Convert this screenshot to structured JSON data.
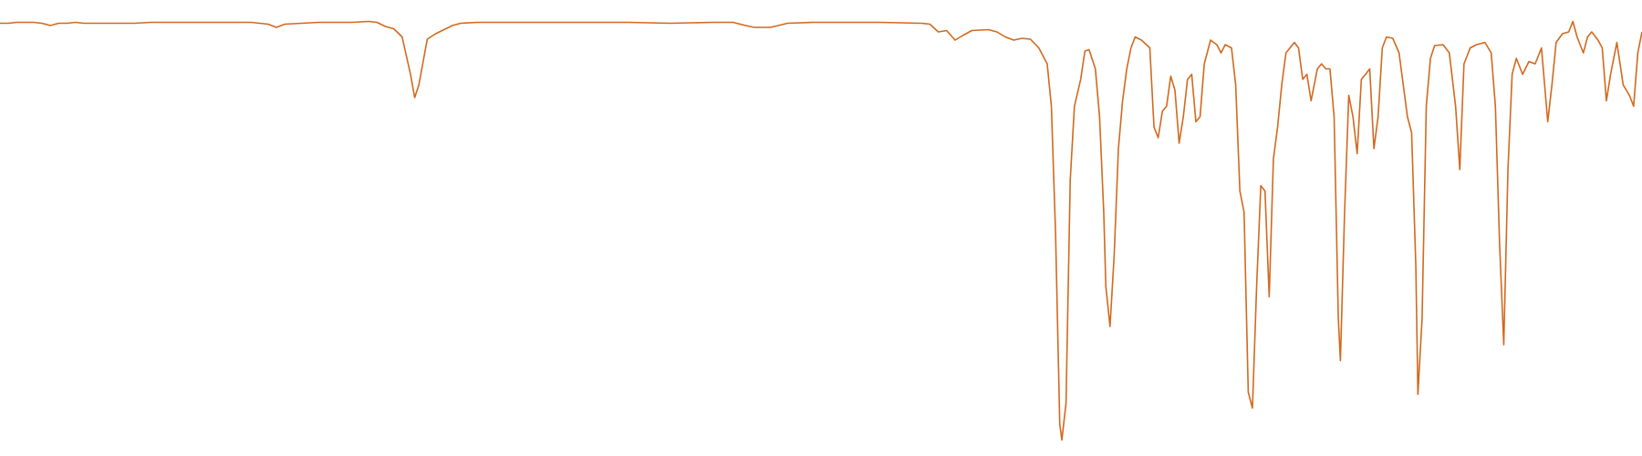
{
  "chart_data": {
    "type": "line",
    "color": "#d2691e",
    "x": [
      0,
      8,
      16,
      24,
      32,
      40,
      48,
      56,
      64,
      72,
      80,
      96,
      112,
      128,
      144,
      160,
      176,
      192,
      208,
      224,
      240,
      256,
      264,
      272,
      288,
      304,
      320,
      336,
      352,
      360,
      368,
      376,
      384,
      392,
      396,
      400,
      408,
      416,
      424,
      432,
      440,
      456,
      480,
      520,
      560,
      600,
      640,
      680,
      700,
      712,
      720,
      736,
      752,
      776,
      800,
      840,
      880,
      888,
      896,
      904,
      912,
      920,
      928,
      944,
      952,
      960,
      968,
      976,
      984,
      992,
      1000,
      1004,
      1008,
      1012,
      1014,
      1018,
      1022,
      1026,
      1032,
      1036,
      1040,
      1046,
      1050,
      1054,
      1056,
      1060,
      1064,
      1068,
      1072,
      1076,
      1080,
      1084,
      1090,
      1098,
      1102,
      1106,
      1110,
      1114,
      1118,
      1122,
      1126,
      1130,
      1134,
      1138,
      1142,
      1146,
      1150,
      1156,
      1162,
      1166,
      1170,
      1176,
      1180,
      1184,
      1188,
      1192,
      1196,
      1200,
      1204,
      1208,
      1212,
      1216,
      1220,
      1224,
      1228,
      1236,
      1240,
      1244,
      1248,
      1252,
      1258,
      1262,
      1266,
      1270,
      1274,
      1278,
      1280,
      1284,
      1288,
      1292,
      1296,
      1300,
      1304,
      1308,
      1312,
      1316,
      1320,
      1324,
      1330,
      1336,
      1344,
      1348,
      1352,
      1354,
      1358,
      1362,
      1366,
      1370,
      1378,
      1384,
      1390,
      1394,
      1398,
      1404,
      1410,
      1418,
      1424,
      1428,
      1432,
      1436,
      1440,
      1444,
      1448,
      1454,
      1460,
      1466,
      1472,
      1478,
      1482,
      1486,
      1492,
      1498,
      1502,
      1506,
      1512,
      1516,
      1520,
      1526,
      1530,
      1534,
      1538,
      1544,
      1550,
      1556,
      1560,
      1564,
      1568
    ],
    "values": [
      94.9,
      94.9,
      95.1,
      95.1,
      95.1,
      94.9,
      94.4,
      94.9,
      94.9,
      95.1,
      94.9,
      94.9,
      94.9,
      94.9,
      95.1,
      95.1,
      95.1,
      95.1,
      95.1,
      95.1,
      95.1,
      94.7,
      94,
      94.7,
      94.9,
      95.1,
      95.1,
      95.1,
      95.3,
      95.1,
      94.2,
      93.7,
      91.9,
      83.7,
      78.6,
      81.4,
      91.4,
      92.6,
      93.5,
      94.4,
      94.9,
      95.1,
      95.1,
      95.1,
      95.1,
      95.1,
      94.9,
      95.1,
      95.1,
      94.4,
      94,
      94,
      94.9,
      95.1,
      95.1,
      95.1,
      94.9,
      94.7,
      93,
      93.3,
      91.2,
      92.3,
      93.3,
      93.5,
      93,
      91.9,
      91.2,
      91.6,
      91.4,
      89.5,
      86,
      76.7,
      48.8,
      7,
      3.5,
      11.6,
      60.5,
      76.7,
      82.6,
      88.8,
      89.1,
      84.9,
      74.4,
      53.5,
      37.2,
      28.4,
      44.2,
      67.4,
      77.9,
      84.9,
      89.5,
      91.9,
      91.2,
      89.5,
      72.1,
      69.8,
      75.6,
      76.7,
      83.3,
      80.2,
      68.6,
      74.4,
      82.6,
      83.7,
      73.3,
      74.4,
      86,
      91.2,
      90.2,
      88.4,
      90.2,
      89.5,
      81.4,
      58.1,
      53.5,
      14,
      10.5,
      37.2,
      59.3,
      58.1,
      34.9,
      65.1,
      72.1,
      81.4,
      88.4,
      90.7,
      89.5,
      82.6,
      83.7,
      77.9,
      84.9,
      86,
      84.9,
      84.9,
      74.4,
      30.2,
      20.9,
      53.5,
      79.1,
      74.4,
      66.3,
      82.6,
      83.7,
      84.9,
      67.4,
      74.4,
      89.5,
      91.9,
      91.6,
      88.4,
      74.4,
      70.9,
      41.9,
      13.5,
      30.2,
      76.7,
      87.2,
      90,
      90.2,
      88.4,
      76.7,
      62.8,
      86,
      89.5,
      90.2,
      90.7,
      88.4,
      76.7,
      46.5,
      24.4,
      62.8,
      83.7,
      87.2,
      83.7,
      86.5,
      86,
      89.5,
      73.3,
      81.4,
      90.7,
      92.6,
      93,
      95.3,
      91.9,
      88.4,
      91.9,
      93,
      91.2,
      89.5,
      77.9,
      83.7,
      90.7,
      81.4,
      79.1,
      76.7,
      88.4,
      93
    ],
    "xlim": [
      0,
      1568
    ],
    "ylim": [
      0,
      100
    ]
  }
}
